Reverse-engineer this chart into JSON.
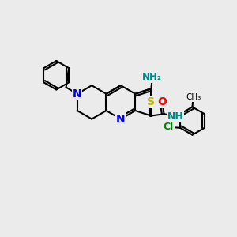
{
  "bg_color": "#ebebeb",
  "bond_color": "#000000",
  "atom_colors": {
    "N": "#0000ee",
    "S": "#bbbb00",
    "O": "#ff0000",
    "Cl": "#008800",
    "NH2": "#008888",
    "NH": "#008888"
  },
  "lw": 1.5,
  "fs": 9
}
